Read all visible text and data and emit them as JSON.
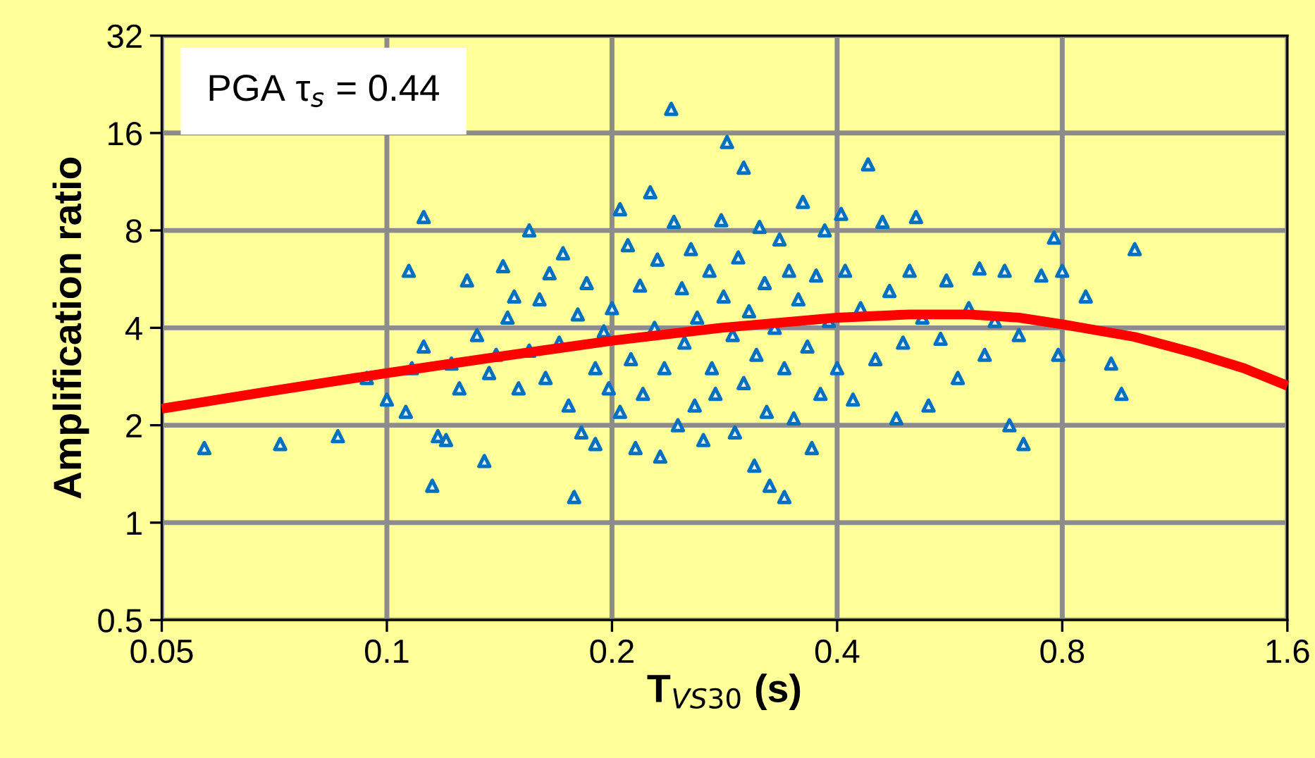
{
  "chart_data": {
    "type": "scatter",
    "xlabel": "T$_{VS30}$ (s)",
    "ylabel": "Amplification ratio",
    "annotations": [
      "PGA τ$_{s}$ = 0.44"
    ],
    "log": "xy",
    "grid": true,
    "legend": false,
    "marker": "triangle",
    "xlim": [
      0.05,
      1.6
    ],
    "xticks": [
      0.05,
      0.1,
      0.2,
      0.4,
      0.8,
      1.6
    ],
    "ylim": [
      0.5,
      32
    ],
    "yticks": [
      0.5,
      1,
      2,
      4,
      8,
      16,
      32
    ],
    "series": [
      {
        "color": "#0070c0",
        "x": [
          0.057,
          0.072,
          0.086,
          0.094,
          0.1,
          0.106,
          0.108,
          0.107,
          0.112,
          0.112,
          0.115,
          0.117,
          0.12,
          0.122,
          0.125,
          0.128,
          0.132,
          0.135,
          0.137,
          0.14,
          0.143,
          0.145,
          0.148,
          0.15,
          0.155,
          0.155,
          0.16,
          0.163,
          0.165,
          0.17,
          0.172,
          0.175,
          0.178,
          0.18,
          0.182,
          0.185,
          0.19,
          0.19,
          0.195,
          0.198,
          0.2,
          0.205,
          0.205,
          0.21,
          0.212,
          0.215,
          0.218,
          0.22,
          0.225,
          0.228,
          0.23,
          0.232,
          0.235,
          0.24,
          0.242,
          0.245,
          0.248,
          0.25,
          0.255,
          0.258,
          0.26,
          0.265,
          0.27,
          0.272,
          0.275,
          0.28,
          0.282,
          0.285,
          0.29,
          0.292,
          0.295,
          0.3,
          0.3,
          0.305,
          0.31,
          0.312,
          0.315,
          0.32,
          0.322,
          0.325,
          0.33,
          0.335,
          0.34,
          0.34,
          0.345,
          0.35,
          0.355,
          0.36,
          0.365,
          0.37,
          0.375,
          0.38,
          0.385,
          0.39,
          0.4,
          0.405,
          0.41,
          0.42,
          0.43,
          0.44,
          0.45,
          0.46,
          0.47,
          0.48,
          0.49,
          0.5,
          0.51,
          0.52,
          0.53,
          0.55,
          0.56,
          0.58,
          0.6,
          0.62,
          0.63,
          0.65,
          0.67,
          0.68,
          0.7,
          0.71,
          0.75,
          0.78,
          0.79,
          0.8,
          0.86,
          0.93,
          0.96,
          1.0
        ],
        "values": [
          1.7,
          1.75,
          1.85,
          2.8,
          2.4,
          2.2,
          3.0,
          6.0,
          8.8,
          3.5,
          1.3,
          1.85,
          1.8,
          3.1,
          2.6,
          5.6,
          3.8,
          1.55,
          2.9,
          3.3,
          6.2,
          4.3,
          5.0,
          2.6,
          8.0,
          3.4,
          4.9,
          2.8,
          5.9,
          3.6,
          6.8,
          2.3,
          1.2,
          4.4,
          1.9,
          5.5,
          3.0,
          1.75,
          3.9,
          2.6,
          4.6,
          9.3,
          2.2,
          7.2,
          3.2,
          1.7,
          5.4,
          2.5,
          10.5,
          4.0,
          6.5,
          1.6,
          3.0,
          19.0,
          8.5,
          2.0,
          5.3,
          3.6,
          7.0,
          2.3,
          4.3,
          1.8,
          6.0,
          3.0,
          2.5,
          8.6,
          5.0,
          15.0,
          3.8,
          1.9,
          6.6,
          2.7,
          12.5,
          4.5,
          1.5,
          3.3,
          8.2,
          5.5,
          2.2,
          1.3,
          4.0,
          7.5,
          1.2,
          3.0,
          6.0,
          2.1,
          4.9,
          9.8,
          3.5,
          1.7,
          5.8,
          2.5,
          8.0,
          4.2,
          3.0,
          9.0,
          6.0,
          2.4,
          4.6,
          12.8,
          3.2,
          8.5,
          5.2,
          2.1,
          3.6,
          6.0,
          8.8,
          4.3,
          2.3,
          3.7,
          5.6,
          2.8,
          4.6,
          6.1,
          3.3,
          4.2,
          6.0,
          2.0,
          3.8,
          1.75,
          5.8,
          7.6,
          3.3,
          6.0,
          5.0,
          3.1,
          2.5,
          7.0
        ]
      },
      {
        "type": "line",
        "color": "#ff0000",
        "marker": "none",
        "x": [
          0.05,
          0.07,
          0.1,
          0.14,
          0.2,
          0.28,
          0.4,
          0.5,
          0.6,
          0.7,
          0.8,
          1.0,
          1.2,
          1.4,
          1.6
        ],
        "values": [
          2.25,
          2.55,
          2.9,
          3.25,
          3.65,
          4.0,
          4.3,
          4.4,
          4.4,
          4.3,
          4.1,
          3.75,
          3.35,
          3.0,
          2.65
        ]
      }
    ]
  }
}
